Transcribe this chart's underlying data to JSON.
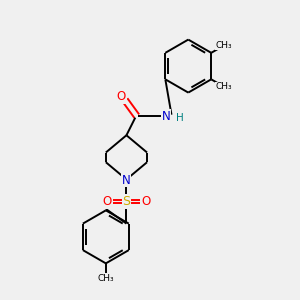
{
  "background_color": "#f0f0f0",
  "atom_colors": {
    "C": "#000000",
    "N": "#0000cc",
    "O": "#ff0000",
    "S": "#ccaa00",
    "H": "#008080"
  },
  "line_color": "#000000",
  "line_width": 1.4,
  "figsize": [
    3.0,
    3.0
  ],
  "dpi": 100,
  "xlim": [
    0,
    10
  ],
  "ylim": [
    0,
    10
  ]
}
